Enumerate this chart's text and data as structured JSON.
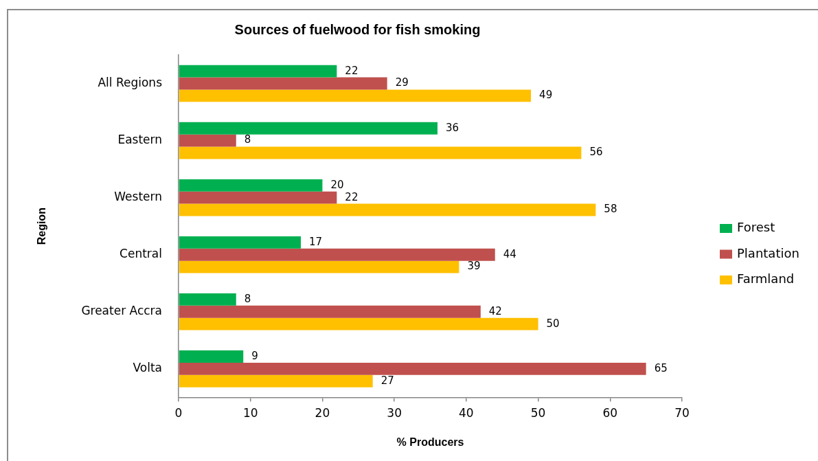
{
  "chart_data": {
    "type": "bar",
    "orientation": "horizontal",
    "title": "Sources of fuelwood for fish smoking",
    "xlabel": "% Producers",
    "ylabel": "Region",
    "categories": [
      "All Regions",
      "Eastern",
      "Western",
      "Central",
      "Greater Accra",
      "Volta"
    ],
    "series": [
      {
        "name": "Forest",
        "color": "#00b050",
        "values": [
          22,
          36,
          20,
          17,
          8,
          9
        ]
      },
      {
        "name": "Plantation",
        "color": "#c0504d",
        "values": [
          29,
          8,
          22,
          44,
          42,
          65
        ]
      },
      {
        "name": "Farmland",
        "color": "#ffc000",
        "values": [
          49,
          56,
          58,
          39,
          50,
          27
        ]
      }
    ],
    "xlim": [
      0,
      70
    ],
    "xticks": [
      0,
      10,
      20,
      30,
      40,
      50,
      60,
      70
    ],
    "data_labels": true,
    "legend": "right"
  }
}
